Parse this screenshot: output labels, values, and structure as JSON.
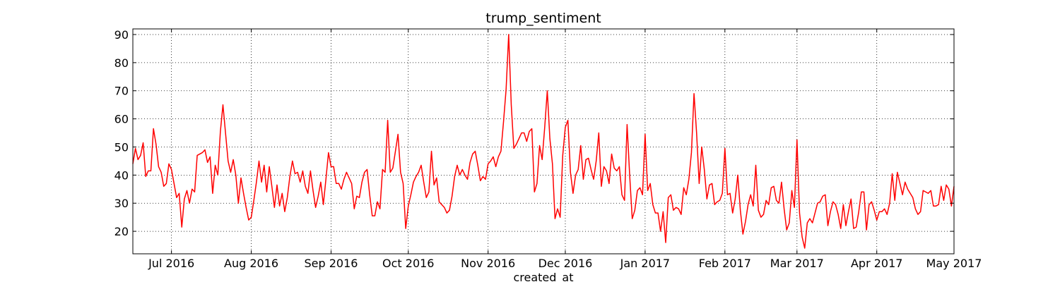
{
  "chart_data": {
    "type": "line",
    "title": "trump_sentiment",
    "xlabel": "created_at",
    "ylabel": "",
    "x_range": [
      "2016-06-16",
      "2017-05-01"
    ],
    "ylim": [
      12,
      92
    ],
    "grid": true,
    "y_ticks": [
      20,
      30,
      40,
      50,
      60,
      70,
      80,
      90
    ],
    "x_ticks": [
      {
        "date": "2016-07-01",
        "label": "Jul 2016"
      },
      {
        "date": "2016-08-01",
        "label": "Aug 2016"
      },
      {
        "date": "2016-09-01",
        "label": "Sep 2016"
      },
      {
        "date": "2016-10-01",
        "label": "Oct 2016"
      },
      {
        "date": "2016-11-01",
        "label": "Nov 2016"
      },
      {
        "date": "2016-12-01",
        "label": "Dec 2016"
      },
      {
        "date": "2017-01-01",
        "label": "Jan 2017"
      },
      {
        "date": "2017-02-01",
        "label": "Feb 2017"
      },
      {
        "date": "2017-03-01",
        "label": "Mar 2017"
      },
      {
        "date": "2017-04-01",
        "label": "Apr 2017"
      },
      {
        "date": "2017-05-01",
        "label": "May 2017"
      }
    ],
    "series": [
      {
        "color": "#ff0000",
        "start_date": "2016-06-16",
        "values": [
          44,
          49.5,
          45.5,
          47,
          51.5,
          39.5,
          41.5,
          41.5,
          56.5,
          51,
          43,
          41,
          36,
          37,
          44,
          42,
          37,
          32,
          33.5,
          21.5,
          31.5,
          34.5,
          30,
          35,
          34,
          47,
          47.5,
          48,
          49,
          44.5,
          46.5,
          33.5,
          43.5,
          40,
          55.5,
          65,
          55,
          45,
          41,
          45.5,
          40,
          30,
          39,
          33.5,
          28.5,
          24,
          25,
          31,
          37.5,
          45,
          37.5,
          43.5,
          34,
          43,
          36,
          28.5,
          36.5,
          29,
          33.5,
          27,
          32,
          39.5,
          45,
          40.5,
          41,
          37.5,
          41.5,
          36,
          33.5,
          41.5,
          34.5,
          28.5,
          32.5,
          37.5,
          29.5,
          38.5,
          48,
          43,
          43,
          37,
          37,
          35,
          38.5,
          41,
          39,
          37,
          28,
          32.5,
          32,
          37.5,
          41,
          42,
          33,
          25.5,
          25.5,
          30.5,
          28,
          42,
          41,
          59.5,
          41,
          42.5,
          48.5,
          54.5,
          41,
          37,
          21,
          29,
          33,
          37.5,
          39.5,
          41,
          43.5,
          37.5,
          32,
          34,
          48.5,
          36.5,
          39,
          30.5,
          29.5,
          28.5,
          26.5,
          27.5,
          32.5,
          39.5,
          43.5,
          40,
          42,
          40,
          38.5,
          44.5,
          47.5,
          48.5,
          43.5,
          38,
          39.5,
          38.5,
          44,
          45,
          46.5,
          43,
          46.5,
          48.5,
          59,
          70.5,
          90,
          65,
          49.5,
          51,
          53,
          55,
          55,
          52,
          55.5,
          56.5,
          34,
          37,
          50.5,
          45.5,
          57,
          70,
          53,
          44,
          24.5,
          28,
          25,
          47,
          57,
          59.5,
          41,
          33.5,
          40,
          42,
          50.5,
          38.5,
          45.5,
          46,
          42,
          38.5,
          45,
          55,
          36,
          43,
          41.5,
          37,
          47.5,
          42.5,
          41.5,
          43,
          33,
          31,
          58,
          40,
          24.5,
          27.5,
          34.5,
          35.5,
          33,
          54.5,
          34.5,
          37,
          29.5,
          26.5,
          26.5,
          20,
          27,
          16,
          32,
          33,
          27.5,
          28.5,
          28,
          26,
          35.5,
          33,
          38.5,
          48,
          69,
          55,
          37,
          50,
          42,
          31.5,
          36.5,
          37,
          29.5,
          30.5,
          31,
          33.5,
          49.5,
          33,
          33.5,
          26.5,
          31.5,
          40,
          27.5,
          19,
          23.5,
          29.5,
          33,
          29,
          43.5,
          27.5,
          25,
          26,
          31,
          29.5,
          35.5,
          36,
          31,
          30,
          37.5,
          28,
          20.5,
          23,
          34.5,
          28.5,
          52.5,
          26.5,
          18,
          14,
          23,
          24.5,
          23,
          26.5,
          30,
          30.5,
          32.5,
          33,
          22,
          27,
          30.5,
          29.5,
          26,
          21,
          29.5,
          22,
          27,
          31.5,
          21,
          21.5,
          27,
          34,
          34,
          20.5,
          29.5,
          30.5,
          27.5,
          24,
          27,
          27,
          28,
          26,
          30,
          40.5,
          31,
          41,
          37,
          33,
          37.5,
          35,
          33.5,
          32,
          28,
          26,
          27,
          34.5,
          34,
          33.5,
          34.5,
          29,
          29,
          29.5,
          36,
          31,
          36.5,
          35,
          29,
          36
        ]
      }
    ]
  }
}
